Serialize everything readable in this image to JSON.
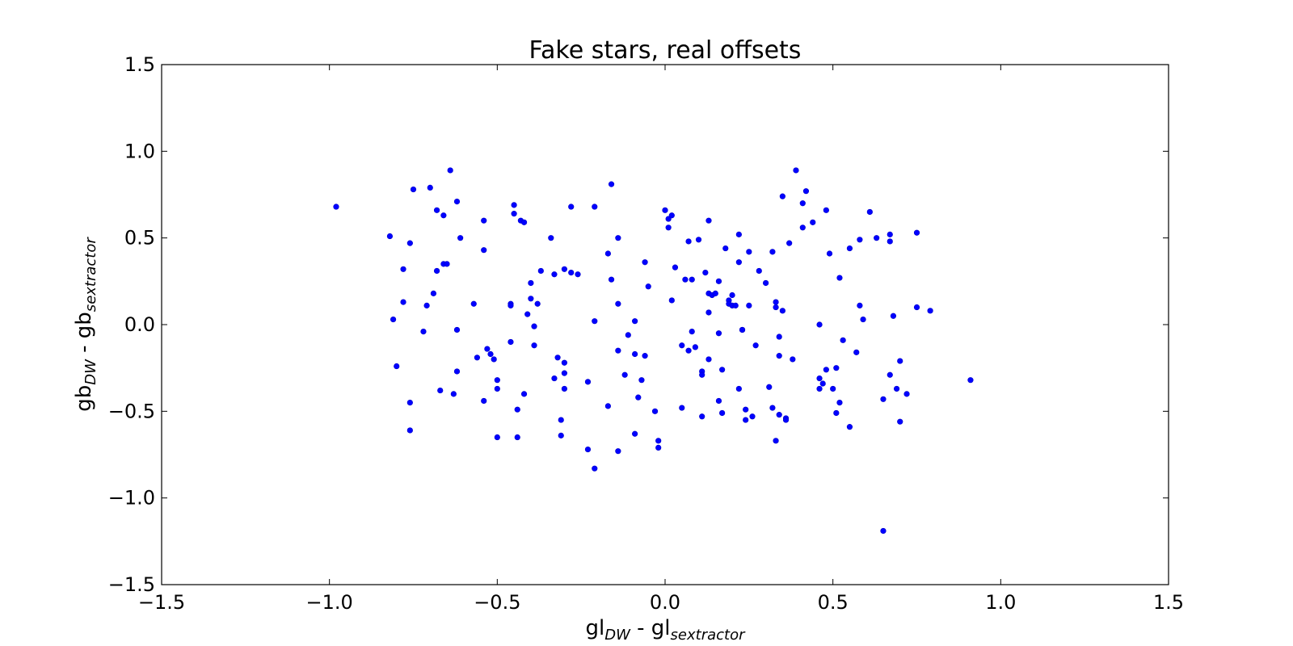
{
  "chart_data": {
    "type": "scatter",
    "title": "Fake stars, real offsets",
    "xlabel": {
      "parts": [
        {
          "text": "gl",
          "sub": false
        },
        {
          "text": "DW",
          "sub": true
        },
        {
          "text": " - gl",
          "sub": false
        },
        {
          "text": "sextractor",
          "sub": true
        }
      ]
    },
    "ylabel": {
      "parts": [
        {
          "text": "gb",
          "sub": false
        },
        {
          "text": "DW",
          "sub": true
        },
        {
          "text": " - gb",
          "sub": false
        },
        {
          "text": "sextractor",
          "sub": true
        }
      ]
    },
    "xlim": [
      -1.5,
      1.5
    ],
    "ylim": [
      -1.5,
      1.5
    ],
    "xticks": [
      -1.5,
      -1.0,
      -0.5,
      0.0,
      0.5,
      1.0,
      1.5
    ],
    "yticks": [
      -1.5,
      -1.0,
      -0.5,
      0.0,
      0.5,
      1.0,
      1.5
    ],
    "xtick_labels": [
      "−1.5",
      "−1.0",
      "−0.5",
      "0.0",
      "0.5",
      "1.0",
      "1.5"
    ],
    "ytick_labels": [
      "−1.5",
      "−1.0",
      "−0.5",
      "0.0",
      "0.5",
      "1.0",
      "1.5"
    ],
    "grid": false,
    "marker_color": "#0000ff",
    "series": [
      {
        "points": [
          [
            -0.98,
            0.68
          ],
          [
            -0.82,
            0.51
          ],
          [
            -0.81,
            0.03
          ],
          [
            -0.8,
            -0.24
          ],
          [
            -0.78,
            0.32
          ],
          [
            -0.78,
            0.13
          ],
          [
            -0.76,
            0.47
          ],
          [
            -0.76,
            -0.45
          ],
          [
            -0.76,
            -0.61
          ],
          [
            -0.75,
            0.78
          ],
          [
            -0.72,
            -0.04
          ],
          [
            -0.71,
            0.11
          ],
          [
            -0.7,
            0.79
          ],
          [
            -0.69,
            0.18
          ],
          [
            -0.68,
            0.66
          ],
          [
            -0.68,
            0.31
          ],
          [
            -0.67,
            -0.38
          ],
          [
            -0.66,
            0.63
          ],
          [
            -0.66,
            0.35
          ],
          [
            -0.65,
            0.35
          ],
          [
            -0.64,
            0.89
          ],
          [
            -0.63,
            -0.4
          ],
          [
            -0.62,
            0.71
          ],
          [
            -0.62,
            -0.27
          ],
          [
            -0.62,
            -0.03
          ],
          [
            -0.61,
            0.5
          ],
          [
            -0.57,
            0.12
          ],
          [
            -0.56,
            -0.19
          ],
          [
            -0.54,
            0.6
          ],
          [
            -0.54,
            0.43
          ],
          [
            -0.54,
            -0.44
          ],
          [
            -0.53,
            -0.14
          ],
          [
            -0.52,
            -0.17
          ],
          [
            -0.51,
            -0.2
          ],
          [
            -0.5,
            -0.32
          ],
          [
            -0.5,
            -0.37
          ],
          [
            -0.5,
            -0.65
          ],
          [
            -0.46,
            -0.1
          ],
          [
            -0.46,
            0.12
          ],
          [
            -0.46,
            0.11
          ],
          [
            -0.45,
            0.69
          ],
          [
            -0.45,
            0.64
          ],
          [
            -0.44,
            -0.49
          ],
          [
            -0.44,
            -0.65
          ],
          [
            -0.43,
            0.6
          ],
          [
            -0.42,
            0.59
          ],
          [
            -0.42,
            -0.4
          ],
          [
            -0.41,
            0.06
          ],
          [
            -0.4,
            0.24
          ],
          [
            -0.4,
            0.15
          ],
          [
            -0.39,
            -0.01
          ],
          [
            -0.39,
            -0.12
          ],
          [
            -0.38,
            0.12
          ],
          [
            -0.37,
            0.31
          ],
          [
            -0.34,
            0.5
          ],
          [
            -0.33,
            0.29
          ],
          [
            -0.33,
            -0.31
          ],
          [
            -0.32,
            -0.19
          ],
          [
            -0.31,
            -0.55
          ],
          [
            -0.31,
            -0.64
          ],
          [
            -0.3,
            0.32
          ],
          [
            -0.3,
            -0.22
          ],
          [
            -0.3,
            -0.28
          ],
          [
            -0.3,
            -0.37
          ],
          [
            -0.28,
            0.68
          ],
          [
            -0.28,
            0.3
          ],
          [
            -0.26,
            0.29
          ],
          [
            -0.23,
            -0.33
          ],
          [
            -0.23,
            -0.72
          ],
          [
            -0.21,
            0.68
          ],
          [
            -0.21,
            0.02
          ],
          [
            -0.21,
            -0.83
          ],
          [
            -0.17,
            0.41
          ],
          [
            -0.17,
            -0.47
          ],
          [
            -0.16,
            0.81
          ],
          [
            -0.16,
            0.26
          ],
          [
            -0.14,
            0.5
          ],
          [
            -0.14,
            0.12
          ],
          [
            -0.14,
            -0.15
          ],
          [
            -0.14,
            -0.73
          ],
          [
            -0.12,
            -0.29
          ],
          [
            -0.11,
            -0.06
          ],
          [
            -0.09,
            0.02
          ],
          [
            -0.09,
            -0.17
          ],
          [
            -0.09,
            -0.63
          ],
          [
            -0.08,
            -0.42
          ],
          [
            -0.07,
            -0.32
          ],
          [
            -0.06,
            0.36
          ],
          [
            -0.06,
            -0.18
          ],
          [
            -0.05,
            0.22
          ],
          [
            -0.03,
            -0.5
          ],
          [
            -0.02,
            -0.67
          ],
          [
            -0.02,
            -0.71
          ],
          [
            0.0,
            0.66
          ],
          [
            0.01,
            0.56
          ],
          [
            0.01,
            0.61
          ],
          [
            0.02,
            0.63
          ],
          [
            0.02,
            0.14
          ],
          [
            0.03,
            0.33
          ],
          [
            0.05,
            -0.12
          ],
          [
            0.05,
            -0.48
          ],
          [
            0.06,
            0.26
          ],
          [
            0.07,
            0.48
          ],
          [
            0.07,
            -0.15
          ],
          [
            0.08,
            0.26
          ],
          [
            0.08,
            -0.04
          ],
          [
            0.09,
            -0.13
          ],
          [
            0.1,
            0.49
          ],
          [
            0.11,
            -0.27
          ],
          [
            0.11,
            -0.29
          ],
          [
            0.11,
            -0.53
          ],
          [
            0.12,
            0.3
          ],
          [
            0.13,
            0.6
          ],
          [
            0.13,
            0.18
          ],
          [
            0.13,
            0.07
          ],
          [
            0.13,
            -0.2
          ],
          [
            0.14,
            0.17
          ],
          [
            0.15,
            0.18
          ],
          [
            0.16,
            0.25
          ],
          [
            0.16,
            -0.05
          ],
          [
            0.16,
            -0.44
          ],
          [
            0.17,
            -0.51
          ],
          [
            0.17,
            -0.26
          ],
          [
            0.18,
            0.44
          ],
          [
            0.19,
            0.14
          ],
          [
            0.19,
            0.12
          ],
          [
            0.2,
            0.17
          ],
          [
            0.2,
            0.11
          ],
          [
            0.21,
            0.11
          ],
          [
            0.22,
            -0.37
          ],
          [
            0.22,
            0.52
          ],
          [
            0.22,
            0.36
          ],
          [
            0.23,
            -0.03
          ],
          [
            0.23,
            -0.03
          ],
          [
            0.24,
            -0.49
          ],
          [
            0.24,
            -0.55
          ],
          [
            0.25,
            0.11
          ],
          [
            0.25,
            0.42
          ],
          [
            0.26,
            -0.53
          ],
          [
            0.27,
            -0.12
          ],
          [
            0.28,
            0.31
          ],
          [
            0.3,
            0.24
          ],
          [
            0.31,
            -0.36
          ],
          [
            0.32,
            -0.48
          ],
          [
            0.32,
            0.42
          ],
          [
            0.33,
            -0.67
          ],
          [
            0.33,
            0.13
          ],
          [
            0.33,
            0.1
          ],
          [
            0.34,
            -0.07
          ],
          [
            0.34,
            -0.18
          ],
          [
            0.34,
            -0.52
          ],
          [
            0.35,
            0.08
          ],
          [
            0.35,
            0.74
          ],
          [
            0.36,
            -0.54
          ],
          [
            0.36,
            -0.55
          ],
          [
            0.37,
            0.47
          ],
          [
            0.38,
            -0.2
          ],
          [
            0.39,
            0.89
          ],
          [
            0.41,
            0.7
          ],
          [
            0.41,
            0.56
          ],
          [
            0.42,
            0.77
          ],
          [
            0.44,
            0.59
          ],
          [
            0.46,
            0.0
          ],
          [
            0.46,
            -0.31
          ],
          [
            0.46,
            -0.37
          ],
          [
            0.47,
            -0.34
          ],
          [
            0.48,
            -0.26
          ],
          [
            0.48,
            0.66
          ],
          [
            0.49,
            0.41
          ],
          [
            0.5,
            -0.37
          ],
          [
            0.51,
            -0.51
          ],
          [
            0.51,
            -0.25
          ],
          [
            0.52,
            0.27
          ],
          [
            0.52,
            -0.45
          ],
          [
            0.53,
            -0.09
          ],
          [
            0.55,
            0.44
          ],
          [
            0.55,
            -0.59
          ],
          [
            0.57,
            -0.16
          ],
          [
            0.58,
            0.11
          ],
          [
            0.58,
            0.49
          ],
          [
            0.59,
            0.03
          ],
          [
            0.61,
            0.65
          ],
          [
            0.63,
            0.5
          ],
          [
            0.65,
            -0.43
          ],
          [
            0.65,
            -1.19
          ],
          [
            0.67,
            0.52
          ],
          [
            0.67,
            0.48
          ],
          [
            0.67,
            -0.29
          ],
          [
            0.68,
            0.05
          ],
          [
            0.69,
            -0.37
          ],
          [
            0.7,
            -0.56
          ],
          [
            0.7,
            -0.21
          ],
          [
            0.72,
            -0.4
          ],
          [
            0.75,
            0.53
          ],
          [
            0.75,
            0.1
          ],
          [
            0.79,
            0.08
          ],
          [
            0.91,
            -0.32
          ]
        ]
      }
    ]
  }
}
